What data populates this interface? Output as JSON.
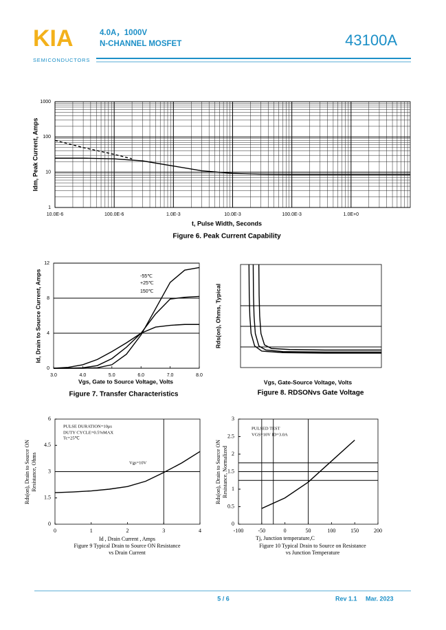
{
  "header": {
    "logo": "KIA",
    "logo_sub": "SEMICONDUCTORS",
    "spec": "4.0A，1000V",
    "product": "N-CHANNEL MOSFET",
    "part": "43100A"
  },
  "footer": {
    "page": "5 / 6",
    "rev": "Rev 1.1",
    "date": "Mar. 2023"
  },
  "chart_data": [
    {
      "type": "line",
      "font": "sans",
      "caption": "Figure 6. Peak Current Capability",
      "xlabel": "t, Pulse Width, Seconds",
      "ylabel": "Idm, Peak Current, Amps",
      "xscale": "log",
      "yscale": "log",
      "grid": "both",
      "minor_grid": true,
      "xlim": [
        1e-05,
        10
      ],
      "ylim": [
        1,
        1000
      ],
      "xticks": [
        {
          "value": 1e-05,
          "label": "10.0E-6"
        },
        {
          "value": 0.0001,
          "label": "100.0E-6"
        },
        {
          "value": 0.001,
          "label": "1.0E-3"
        },
        {
          "value": 0.01,
          "label": "10.0E-3"
        },
        {
          "value": 0.1,
          "label": "100.0E-3"
        },
        {
          "value": 1,
          "label": "1.0E+0"
        }
      ],
      "yticks": [
        1,
        10,
        100,
        1000
      ],
      "series": [
        {
          "color": "#000000",
          "dash": true,
          "x": [
            1e-05,
            3e-05,
            0.0001,
            0.0002
          ],
          "values": [
            80,
            50,
            32,
            24
          ]
        },
        {
          "color": "#000000",
          "x": [
            1e-05,
            3e-05,
            0.0001,
            0.0003,
            0.001,
            0.003,
            0.01,
            0.03,
            0.1,
            1,
            10
          ],
          "values": [
            25,
            25,
            24,
            21,
            15,
            11,
            9.3,
            8.8,
            8.6,
            8.6,
            8.6
          ]
        }
      ]
    },
    {
      "type": "line",
      "font": "sans",
      "caption": "Figure 7. Transfer Characteristics",
      "xlabel": "Vgs, Gate to Source Voltage, Volts",
      "ylabel": "Id, Drain to Source Current, Amps",
      "grid": "y",
      "xlim": [
        3,
        8
      ],
      "ylim": [
        0,
        12
      ],
      "xticks": [
        {
          "value": 3,
          "label": "3.0"
        },
        {
          "value": 4,
          "label": "4.0"
        },
        {
          "value": 5,
          "label": "5.0"
        },
        {
          "value": 6,
          "label": "6.0"
        },
        {
          "value": 7,
          "label": "7.0"
        },
        {
          "value": 8,
          "label": "8.0"
        }
      ],
      "yticks": [
        0,
        4,
        8,
        12
      ],
      "x": [
        3,
        3.5,
        4,
        4.5,
        5,
        5.5,
        6,
        6.5,
        7,
        7.5,
        8
      ],
      "series": [
        {
          "name": "-55℃",
          "color": "#000000",
          "values": [
            0,
            0,
            0,
            0.05,
            0.4,
            1.6,
            3.8,
            6.8,
            9.8,
            11.2,
            11.5
          ]
        },
        {
          "name": "+25℃",
          "color": "#000000",
          "values": [
            0,
            0,
            0.05,
            0.3,
            1.1,
            2.4,
            4.0,
            6.2,
            7.9,
            8.1,
            8.2
          ]
        },
        {
          "name": "150℃",
          "color": "#000000",
          "values": [
            0,
            0.1,
            0.4,
            1.0,
            1.9,
            2.9,
            4.0,
            4.7,
            4.9,
            5.0,
            5.0
          ]
        }
      ]
    },
    {
      "type": "line",
      "font": "sans",
      "caption": "Figure 8.    RDSONvs Gate Voltage",
      "xlabel": "Vgs, Gate-Source Voltage, Volts",
      "ylabel": "Rds(on), Ohms, Typical",
      "xlim": [
        0,
        10
      ],
      "ylim": [
        0,
        10
      ],
      "hlines": [
        6,
        4,
        2
      ],
      "series": [
        {
          "color": "#000000",
          "x": [
            0.6,
            0.62,
            0.66,
            0.75,
            1,
            1.5,
            3,
            6,
            10
          ],
          "values": [
            10,
            7,
            5,
            3.3,
            2.1,
            1.6,
            1.45,
            1.4,
            1.4
          ]
        },
        {
          "color": "#000000",
          "x": [
            0.9,
            0.92,
            0.96,
            1.05,
            1.3,
            1.8,
            3,
            6,
            10
          ],
          "values": [
            10,
            7,
            5,
            3.3,
            2.1,
            1.7,
            1.55,
            1.5,
            1.5
          ]
        },
        {
          "color": "#000000",
          "x": [
            1.3,
            1.32,
            1.36,
            1.45,
            1.7,
            2.2,
            3.5,
            6,
            10
          ],
          "values": [
            10,
            7,
            5,
            3.3,
            2.2,
            1.85,
            1.75,
            1.7,
            1.7
          ]
        }
      ]
    },
    {
      "type": "line",
      "font": "serif",
      "caption": [
        "Figure    9    Typical Drain to Source ON Resistance",
        "vs Drain Current"
      ],
      "xlabel": "Id , Drain Current , Amps",
      "ylabel": [
        "Rds(on), Drain to Source ON",
        "Resistance, Ohms"
      ],
      "annotations": [
        "PULSE DURATION=10μs",
        "DUTY CYCLE=0.5%MAX",
        "Tc=25℃",
        "Vgs=10V"
      ],
      "xlim": [
        0,
        4
      ],
      "ylim": [
        0,
        6
      ],
      "xticks": [
        0,
        1,
        2,
        3,
        4
      ],
      "yticks": [
        0,
        1.5,
        3,
        4.5,
        6
      ],
      "hlines": [
        3
      ],
      "vlines": [
        3
      ],
      "series": [
        {
          "color": "#000000",
          "x": [
            0,
            0.5,
            1,
            1.5,
            2,
            2.5,
            3,
            3.5,
            4
          ],
          "values": [
            1.8,
            1.84,
            1.9,
            2.0,
            2.15,
            2.45,
            2.95,
            3.5,
            4.15
          ]
        }
      ]
    },
    {
      "type": "line",
      "font": "serif",
      "caption": [
        "Figure    10    Typical Drain to Source on Resistance",
        "vs Junction Temperature"
      ],
      "xlabel": "Tj, Junction temperature,C",
      "ylabel": [
        "Rds(on), Drain to Source ON",
        "Resistance, Normalized"
      ],
      "annotations": [
        "PULSED    TEST",
        "VGS=10V    ID=3.0A"
      ],
      "xlim": [
        -100,
        200
      ],
      "ylim": [
        0,
        3
      ],
      "xticks": [
        -100,
        -50,
        0,
        50,
        100,
        150,
        200
      ],
      "yticks": [
        0,
        0.5,
        1,
        1.5,
        2,
        2.5,
        3
      ],
      "hlines": [
        1.25,
        1.5,
        1.75
      ],
      "vlines": [
        -50,
        -25,
        50
      ],
      "series": [
        {
          "color": "#000000",
          "x": [
            -50,
            0,
            50,
            100,
            150
          ],
          "values": [
            0.45,
            0.75,
            1.2,
            1.8,
            2.4
          ]
        }
      ]
    }
  ]
}
